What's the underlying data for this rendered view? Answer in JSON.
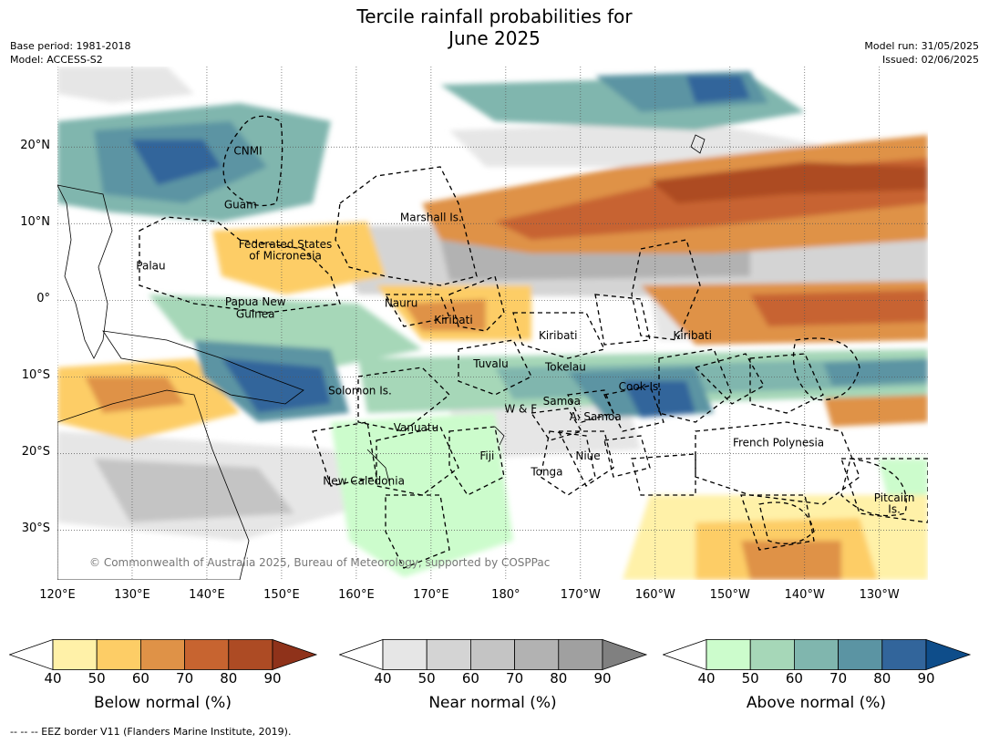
{
  "title": "Tercile rainfall probabilities for\nJune 2025",
  "meta_left": [
    "Base period: 1981-2018",
    "Model: ACCESS-S2"
  ],
  "meta_right": [
    "Model run: 31/05/2025",
    "Issued: 02/06/2025"
  ],
  "axes": {
    "lat_labels": [
      {
        "text": "20°N",
        "lat": 20
      },
      {
        "text": "10°N",
        "lat": 10
      },
      {
        "text": "0°",
        "lat": 0
      },
      {
        "text": "10°S",
        "lat": -10
      },
      {
        "text": "20°S",
        "lat": -20
      },
      {
        "text": "30°S",
        "lat": -30
      }
    ],
    "lon_labels": [
      {
        "text": "120°E",
        "lon": 120
      },
      {
        "text": "130°E",
        "lon": 130
      },
      {
        "text": "140°E",
        "lon": 140
      },
      {
        "text": "150°E",
        "lon": 150
      },
      {
        "text": "160°E",
        "lon": 160
      },
      {
        "text": "170°E",
        "lon": 170
      },
      {
        "text": "180°",
        "lon": 180
      },
      {
        "text": "170°W",
        "lon": 190
      },
      {
        "text": "160°W",
        "lon": 200
      },
      {
        "text": "150°W",
        "lon": 210
      },
      {
        "text": "140°W",
        "lon": 220
      },
      {
        "text": "130°W",
        "lon": 230
      }
    ],
    "lon_range": [
      120,
      236.5
    ],
    "lat_range": [
      -36.5,
      30.5
    ]
  },
  "region_labels": [
    {
      "text": "CNMI",
      "lon": 145.5,
      "lat": 19.5
    },
    {
      "text": "Guam",
      "lon": 144.5,
      "lat": 12.5
    },
    {
      "text": "Marshall Is.",
      "lon": 170,
      "lat": 10.8
    },
    {
      "text": "Federated States",
      "lon": 150.5,
      "lat": 7.3
    },
    {
      "text": "of Micronesia",
      "lon": 150.5,
      "lat": 5.8
    },
    {
      "text": "Palau",
      "lon": 132.5,
      "lat": 4.5
    },
    {
      "text": "Papua New",
      "lon": 146.5,
      "lat": -0.2
    },
    {
      "text": "Guinea",
      "lon": 146.5,
      "lat": -1.8
    },
    {
      "text": "Nauru",
      "lon": 166,
      "lat": -0.4
    },
    {
      "text": "Kiribati",
      "lon": 173,
      "lat": -2.6
    },
    {
      "text": "Kiribati",
      "lon": 187,
      "lat": -4.6
    },
    {
      "text": "Kiribati",
      "lon": 205,
      "lat": -4.6
    },
    {
      "text": "Tuvalu",
      "lon": 178,
      "lat": -8.3
    },
    {
      "text": "Tokelau",
      "lon": 188,
      "lat": -8.7
    },
    {
      "text": "Solomon Is.",
      "lon": 160.5,
      "lat": -11.8
    },
    {
      "text": "Cook Is.",
      "lon": 198,
      "lat": -11.3
    },
    {
      "text": "Samoa",
      "lon": 187.5,
      "lat": -13.2
    },
    {
      "text": "W & F",
      "lon": 182,
      "lat": -14.2
    },
    {
      "text": "A. Samoa",
      "lon": 192,
      "lat": -15.2
    },
    {
      "text": "Vanuatu",
      "lon": 168,
      "lat": -16.6
    },
    {
      "text": "French Polynesia",
      "lon": 216.5,
      "lat": -18.6
    },
    {
      "text": "Fiji",
      "lon": 177.5,
      "lat": -20.3
    },
    {
      "text": "Niue",
      "lon": 191,
      "lat": -20.3
    },
    {
      "text": "Tonga",
      "lon": 185.5,
      "lat": -22.4
    },
    {
      "text": "New Caledonia",
      "lon": 161,
      "lat": -23.6
    },
    {
      "text": "Pitcairn",
      "lon": 232,
      "lat": -25.8
    },
    {
      "text": "Is.",
      "lon": 232,
      "lat": -27.3
    }
  ],
  "copyright": "© Commonwealth of Australia 2025, Bureau of Meteorology, supported by COSPPac",
  "colorbars": [
    {
      "label": "Below normal (%)",
      "ticks": [
        "40",
        "50",
        "60",
        "70",
        "80",
        "90"
      ],
      "colors": [
        "#fff1a8",
        "#fdcd66",
        "#df9247",
        "#c76430",
        "#ad4b24"
      ],
      "under": "#ffffff",
      "over": "#8f321a"
    },
    {
      "label": "Near normal (%)",
      "ticks": [
        "40",
        "50",
        "60",
        "70",
        "80",
        "90"
      ],
      "colors": [
        "#e6e6e6",
        "#d4d4d4",
        "#c4c4c4",
        "#b2b2b2",
        "#a0a0a0"
      ],
      "under": "#ffffff",
      "over": "#808080"
    },
    {
      "label": "Above normal (%)",
      "ticks": [
        "40",
        "50",
        "60",
        "70",
        "80",
        "90"
      ],
      "colors": [
        "#ccfccc",
        "#a6d7b8",
        "#80b6ae",
        "#5b94a3",
        "#32659b"
      ],
      "under": "#ffffff",
      "over": "#0e4d8a"
    }
  ],
  "footer": "--  --  -- EEZ border V11 (Flanders Marine Institute, 2019)."
}
